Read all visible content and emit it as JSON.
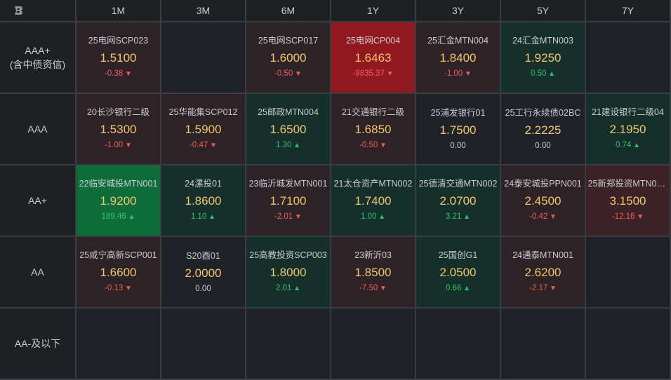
{
  "logo_text": "B",
  "columns": [
    "1M",
    "3M",
    "6M",
    "1Y",
    "3Y",
    "5Y",
    "7Y"
  ],
  "rows": [
    {
      "label_line1": "AAA+",
      "label_line2": "(含中债资信)",
      "cells": [
        {
          "name": "25电网SCP023",
          "yield": "1.5100",
          "change": "-0.38",
          "dir": "down",
          "tone": "red-dim"
        },
        {
          "name": "",
          "yield": "",
          "change": "",
          "dir": "none",
          "tone": "empty"
        },
        {
          "name": "25电网SCP017",
          "yield": "1.6000",
          "change": "-0.50",
          "dir": "down",
          "tone": "red-dim"
        },
        {
          "name": "25电网CP004",
          "yield": "1.6463",
          "change": "-9835.37",
          "dir": "down",
          "tone": "red-strong"
        },
        {
          "name": "25汇金MTN004",
          "yield": "1.8400",
          "change": "-1.00",
          "dir": "down",
          "tone": "red-dim"
        },
        {
          "name": "24汇金MTN003",
          "yield": "1.9250",
          "change": "0.50",
          "dir": "up",
          "tone": "green-dim"
        },
        {
          "name": "",
          "yield": "",
          "change": "",
          "dir": "none",
          "tone": "empty"
        }
      ]
    },
    {
      "label_line1": "AAA",
      "label_line2": "",
      "cells": [
        {
          "name": "20长沙银行二级",
          "yield": "1.5300",
          "change": "-1.00",
          "dir": "down",
          "tone": "red-dim"
        },
        {
          "name": "25华能集SCP012",
          "yield": "1.5900",
          "change": "-0.47",
          "dir": "down",
          "tone": "red-dim"
        },
        {
          "name": "25邮政MTN004",
          "yield": "1.6500",
          "change": "1.30",
          "dir": "up",
          "tone": "green-dim"
        },
        {
          "name": "21交通银行二级",
          "yield": "1.6850",
          "change": "-0.50",
          "dir": "down",
          "tone": "red-dim"
        },
        {
          "name": "25浦发银行01",
          "yield": "1.7500",
          "change": "0.00",
          "dir": "flat",
          "tone": "neutral"
        },
        {
          "name": "25工行永续债02BC",
          "yield": "2.2225",
          "change": "0.00",
          "dir": "flat",
          "tone": "neutral"
        },
        {
          "name": "21建设银行二级04",
          "yield": "2.1950",
          "change": "0.74",
          "dir": "up",
          "tone": "green-dim"
        }
      ]
    },
    {
      "label_line1": "AA+",
      "label_line2": "",
      "cells": [
        {
          "name": "22临安城投MTN001",
          "yield": "1.9200",
          "change": "189.46",
          "dir": "up",
          "tone": "green-strong"
        },
        {
          "name": "24漯投01",
          "yield": "1.8600",
          "change": "1.10",
          "dir": "up",
          "tone": "green-dim"
        },
        {
          "name": "23临沂城发MTN001",
          "yield": "1.7100",
          "change": "-2.01",
          "dir": "down",
          "tone": "red-dim"
        },
        {
          "name": "21太仓资产MTN002",
          "yield": "1.7400",
          "change": "1.00",
          "dir": "up",
          "tone": "green-dim"
        },
        {
          "name": "25德清交通MTN002",
          "yield": "2.0700",
          "change": "3.21",
          "dir": "up",
          "tone": "green-dim"
        },
        {
          "name": "24泰安城投PPN001",
          "yield": "2.4500",
          "change": "-0.42",
          "dir": "down",
          "tone": "red-dim"
        },
        {
          "name": "25新郑投资MTN00...",
          "yield": "3.1500",
          "change": "-12.16",
          "dir": "down",
          "tone": "red"
        }
      ]
    },
    {
      "label_line1": "AA",
      "label_line2": "",
      "cells": [
        {
          "name": "25咸宁高新SCP001",
          "yield": "1.6600",
          "change": "-0.13",
          "dir": "down",
          "tone": "red-dim"
        },
        {
          "name": "S20酉01",
          "yield": "2.0000",
          "change": "0.00",
          "dir": "flat",
          "tone": "neutral"
        },
        {
          "name": "25高教投资SCP003",
          "yield": "1.8000",
          "change": "2.01",
          "dir": "up",
          "tone": "green-dim"
        },
        {
          "name": "23新沂03",
          "yield": "1.8500",
          "change": "-7.50",
          "dir": "down",
          "tone": "red-dim"
        },
        {
          "name": "25国创G1",
          "yield": "2.0500",
          "change": "0.66",
          "dir": "up",
          "tone": "green-dim"
        },
        {
          "name": "24通泰MTN001",
          "yield": "2.6200",
          "change": "-2.17",
          "dir": "down",
          "tone": "red-dim"
        },
        {
          "name": "",
          "yield": "",
          "change": "",
          "dir": "none",
          "tone": "empty"
        }
      ]
    },
    {
      "label_line1": "AA-及以下",
      "label_line2": "",
      "cells": [
        {
          "name": "",
          "yield": "",
          "change": "",
          "dir": "none",
          "tone": "empty"
        },
        {
          "name": "",
          "yield": "",
          "change": "",
          "dir": "none",
          "tone": "empty"
        },
        {
          "name": "",
          "yield": "",
          "change": "",
          "dir": "none",
          "tone": "empty"
        },
        {
          "name": "",
          "yield": "",
          "change": "",
          "dir": "none",
          "tone": "empty"
        },
        {
          "name": "",
          "yield": "",
          "change": "",
          "dir": "none",
          "tone": "empty"
        },
        {
          "name": "",
          "yield": "",
          "change": "",
          "dir": "none",
          "tone": "empty"
        },
        {
          "name": "",
          "yield": "",
          "change": "",
          "dir": "none",
          "tone": "empty"
        }
      ]
    }
  ]
}
